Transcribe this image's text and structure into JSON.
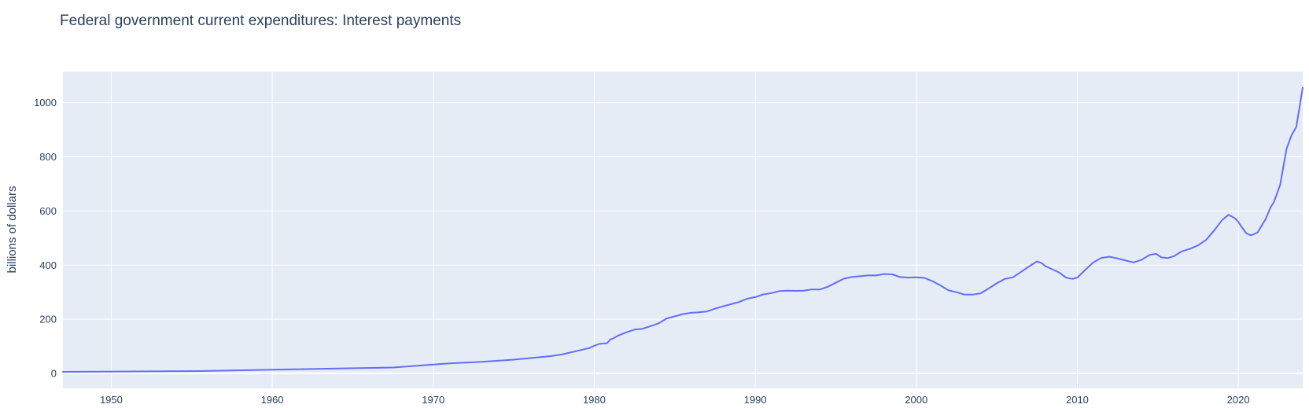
{
  "chart_data": {
    "type": "line",
    "title": "Federal government current expenditures: Interest payments",
    "xlabel": "",
    "ylabel": "billions of dollars",
    "xlim": [
      1947.0,
      2024.0
    ],
    "ylim": [
      -55,
      1115
    ],
    "x_ticks": [
      1950,
      1960,
      1970,
      1980,
      1990,
      2000,
      2010,
      2020
    ],
    "x_tick_labels": [
      "1950",
      "1960",
      "1970",
      "1980",
      "1990",
      "2000",
      "2010",
      "2020"
    ],
    "y_ticks": [
      0,
      200,
      400,
      600,
      800,
      1000
    ],
    "y_tick_labels": [
      "0",
      "200",
      "400",
      "600",
      "800",
      "1000"
    ],
    "grid": true,
    "legend": "none",
    "series": [
      {
        "color": "#636efa",
        "x": [
          1947.0,
          1955.5,
          1967.5,
          1971.0,
          1973.0,
          1975.0,
          1977.3,
          1978.0,
          1979.7,
          1980.0,
          1980.3,
          1980.8,
          1981.0,
          1981.2,
          1981.5,
          1982.0,
          1982.5,
          1983.0,
          1983.5,
          1984.0,
          1984.5,
          1985.0,
          1985.5,
          1986.0,
          1986.5,
          1987.0,
          1987.5,
          1988.0,
          1988.5,
          1989.0,
          1989.5,
          1990.0,
          1990.5,
          1991.0,
          1991.5,
          1992.0,
          1992.5,
          1993.0,
          1993.5,
          1994.0,
          1994.5,
          1995.0,
          1995.5,
          1996.0,
          1996.5,
          1997.0,
          1997.5,
          1998.0,
          1998.5,
          1999.0,
          1999.5,
          2000.0,
          2000.5,
          2001.0,
          2001.5,
          2002.0,
          2002.5,
          2003.0,
          2003.5,
          2004.0,
          2004.5,
          2005.0,
          2005.5,
          2006.0,
          2006.5,
          2007.0,
          2007.5,
          2007.8,
          2008.0,
          2008.5,
          2008.9,
          2009.3,
          2009.7,
          2010.0,
          2010.5,
          2011.0,
          2011.5,
          2012.0,
          2012.5,
          2013.0,
          2013.5,
          2014.0,
          2014.5,
          2014.9,
          2015.2,
          2015.6,
          2016.0,
          2016.5,
          2017.0,
          2017.5,
          2018.0,
          2018.5,
          2019.0,
          2019.4,
          2019.8,
          2020.0,
          2020.2,
          2020.5,
          2020.8,
          2021.2,
          2021.7,
          2022.0,
          2022.2,
          2022.6,
          2023.0,
          2023.3,
          2023.6,
          2024.0
        ],
        "y": [
          6,
          9,
          22,
          37,
          43,
          51,
          64,
          70,
          94,
          102,
          109,
          112,
          126,
          130,
          140,
          152,
          162,
          165,
          175,
          185,
          203,
          211,
          219,
          224,
          226,
          229,
          239,
          248,
          256,
          264,
          276,
          282,
          292,
          297,
          304,
          306,
          305,
          306,
          310,
          310,
          320,
          335,
          350,
          356,
          359,
          362,
          362,
          367,
          366,
          356,
          354,
          355,
          353,
          341,
          325,
          307,
          300,
          291,
          291,
          296,
          314,
          333,
          349,
          355,
          375,
          395,
          414,
          407,
          397,
          383,
          372,
          354,
          349,
          354,
          383,
          410,
          427,
          431,
          425,
          417,
          410,
          420,
          438,
          442,
          429,
          426,
          433,
          451,
          460,
          473,
          493,
          528,
          567,
          586,
          573,
          560,
          542,
          517,
          510,
          521,
          570,
          613,
          632,
          696,
          830,
          879,
          910,
          1055
        ]
      }
    ]
  }
}
